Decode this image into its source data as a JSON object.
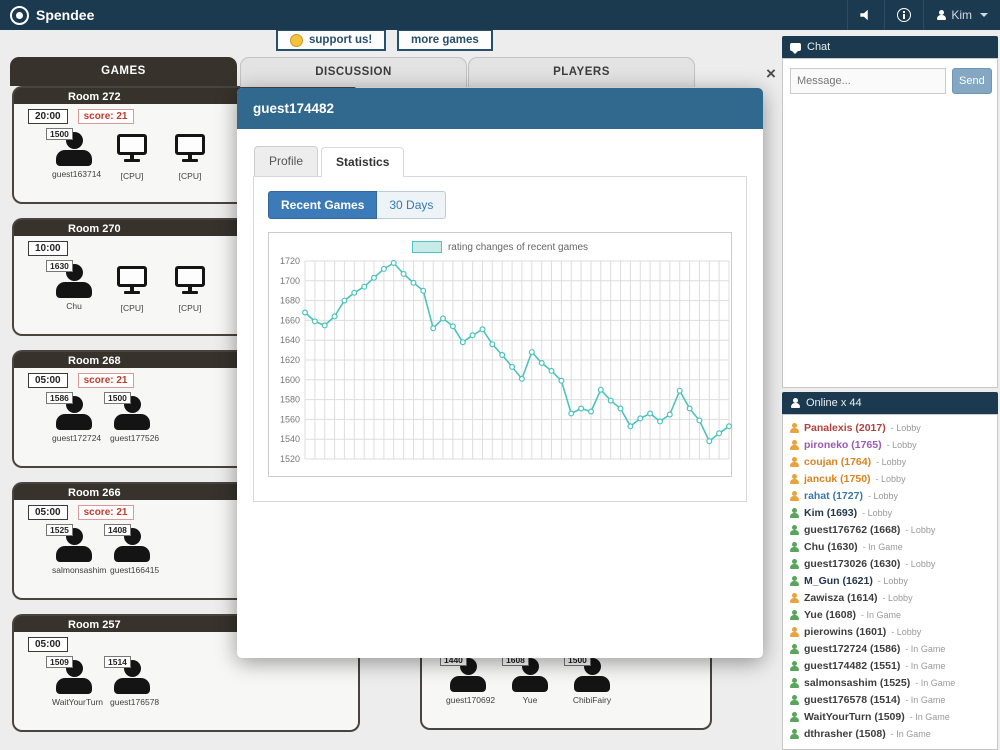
{
  "navbar": {
    "brand": "Spendee",
    "user": "Kim"
  },
  "buttons": {
    "support": "support us!",
    "more": "more games"
  },
  "tabs": [
    {
      "label": "GAMES",
      "active": true
    },
    {
      "label": "DISCUSSION",
      "active": false
    },
    {
      "label": "PLAYERS",
      "active": false
    }
  ],
  "rooms": [
    {
      "name": "Room 272",
      "timer": "20:00",
      "score": "score: 21",
      "players": [
        {
          "rating": "1500",
          "name": "guest163714",
          "type": "human"
        },
        {
          "rating": "",
          "name": "[CPU]",
          "type": "cpu"
        },
        {
          "rating": "",
          "name": "[CPU]",
          "type": "cpu"
        }
      ]
    },
    {
      "name": "Room 270",
      "timer": "10:00",
      "score": "",
      "players": [
        {
          "rating": "1630",
          "name": "Chu",
          "type": "human"
        },
        {
          "rating": "",
          "name": "[CPU]",
          "type": "cpu"
        },
        {
          "rating": "",
          "name": "[CPU]",
          "type": "cpu"
        }
      ]
    },
    {
      "name": "Room 268",
      "timer": "05:00",
      "score": "score: 21",
      "players": [
        {
          "rating": "1586",
          "name": "guest172724",
          "type": "human"
        },
        {
          "rating": "1500",
          "name": "guest177526",
          "type": "human"
        }
      ]
    },
    {
      "name": "Room 266",
      "timer": "05:00",
      "score": "score: 21",
      "players": [
        {
          "rating": "1525",
          "name": "salmonsashim",
          "type": "human"
        },
        {
          "rating": "1408",
          "name": "guest166415",
          "type": "human"
        }
      ]
    },
    {
      "name": "Room 257",
      "timer": "05:00",
      "score": "",
      "players": [
        {
          "rating": "1509",
          "name": "WaitYourTurn",
          "type": "human"
        },
        {
          "rating": "1514",
          "name": "guest176578",
          "type": "human"
        }
      ]
    }
  ],
  "partial_room": {
    "name": "",
    "players": [
      {
        "rating": "1440",
        "name": "guest170692",
        "type": "human"
      },
      {
        "rating": "1608",
        "name": "Yue",
        "type": "human"
      },
      {
        "rating": "1500",
        "name": "ChibiFairy",
        "type": "human"
      }
    ]
  },
  "modal": {
    "title": "guest174482",
    "close": "×",
    "tabs": [
      "Profile",
      "Statistics"
    ],
    "subtabs": [
      "Recent Games",
      "30 Days"
    ]
  },
  "chart_data": {
    "type": "line",
    "legend": "rating changes of recent games",
    "series": [
      {
        "name": "rating changes of recent games",
        "values": [
          1668,
          1659,
          1655,
          1664,
          1680,
          1688,
          1694,
          1703,
          1712,
          1718,
          1707,
          1698,
          1690,
          1652,
          1662,
          1654,
          1638,
          1645,
          1651,
          1636,
          1625,
          1613,
          1601,
          1628,
          1617,
          1609,
          1599,
          1566,
          1571,
          1568,
          1590,
          1579,
          1571,
          1553,
          1561,
          1566,
          1558,
          1565,
          1589,
          1571,
          1559,
          1538,
          1546,
          1553
        ]
      }
    ],
    "ylim": [
      1520,
      1720
    ],
    "yticks": [
      1520,
      1540,
      1560,
      1580,
      1600,
      1620,
      1640,
      1660,
      1680,
      1700,
      1720
    ],
    "grid": true,
    "line_color": "#4cc3be",
    "legend_fill": "#c7ebe9"
  },
  "chat": {
    "header": "Chat",
    "placeholder": "Message...",
    "send": "Send"
  },
  "online": {
    "header": "Online x 44",
    "players": [
      {
        "name": "Panalexis (2017)",
        "status": "- Lobby",
        "color": "#b0413e",
        "icon": "#e8a33d"
      },
      {
        "name": "pironeko (1765)",
        "status": "- Lobby",
        "color": "#9b59b6",
        "icon": "#e8a33d"
      },
      {
        "name": "coujan (1764)",
        "status": "- Lobby",
        "color": "#d9831f",
        "icon": "#e8a33d"
      },
      {
        "name": "jancuk (1750)",
        "status": "- Lobby",
        "color": "#d9831f",
        "icon": "#e8a33d"
      },
      {
        "name": "rahat (1727)",
        "status": "- Lobby",
        "color": "#3a78a8",
        "icon": "#e8a33d"
      },
      {
        "name": "Kim (1693)",
        "status": "- Lobby",
        "color": "#23374d",
        "icon": "#58a65c"
      },
      {
        "name": "guest176762 (1668)",
        "status": "- Lobby",
        "color": "#3d3d3d",
        "icon": "#58a65c"
      },
      {
        "name": "Chu (1630)",
        "status": "- In Game",
        "color": "#3d3d3d",
        "icon": "#58a65c"
      },
      {
        "name": "guest173026 (1630)",
        "status": "- Lobby",
        "color": "#3d3d3d",
        "icon": "#58a65c"
      },
      {
        "name": "M_Gun (1621)",
        "status": "- Lobby",
        "color": "#23374d",
        "icon": "#58a65c"
      },
      {
        "name": "Zawisza (1614)",
        "status": "- Lobby",
        "color": "#3d3d3d",
        "icon": "#e8a33d"
      },
      {
        "name": "Yue (1608)",
        "status": "- In Game",
        "color": "#3d3d3d",
        "icon": "#58a65c"
      },
      {
        "name": "pierowins (1601)",
        "status": "- Lobby",
        "color": "#3d3d3d",
        "icon": "#e8a33d"
      },
      {
        "name": "guest172724 (1586)",
        "status": "- In Game",
        "color": "#3d3d3d",
        "icon": "#58a65c"
      },
      {
        "name": "guest174482 (1551)",
        "status": "- In Game",
        "color": "#3d3d3d",
        "icon": "#58a65c"
      },
      {
        "name": "salmonsashim (1525)",
        "status": "- In Game",
        "color": "#3d3d3d",
        "icon": "#58a65c"
      },
      {
        "name": "guest176578 (1514)",
        "status": "- In Game",
        "color": "#3d3d3d",
        "icon": "#58a65c"
      },
      {
        "name": "WaitYourTurn (1509)",
        "status": "- In Game",
        "color": "#3d3d3d",
        "icon": "#58a65c"
      },
      {
        "name": "dthrasher (1508)",
        "status": "- In Game",
        "color": "#3d3d3d",
        "icon": "#58a65c"
      }
    ]
  }
}
